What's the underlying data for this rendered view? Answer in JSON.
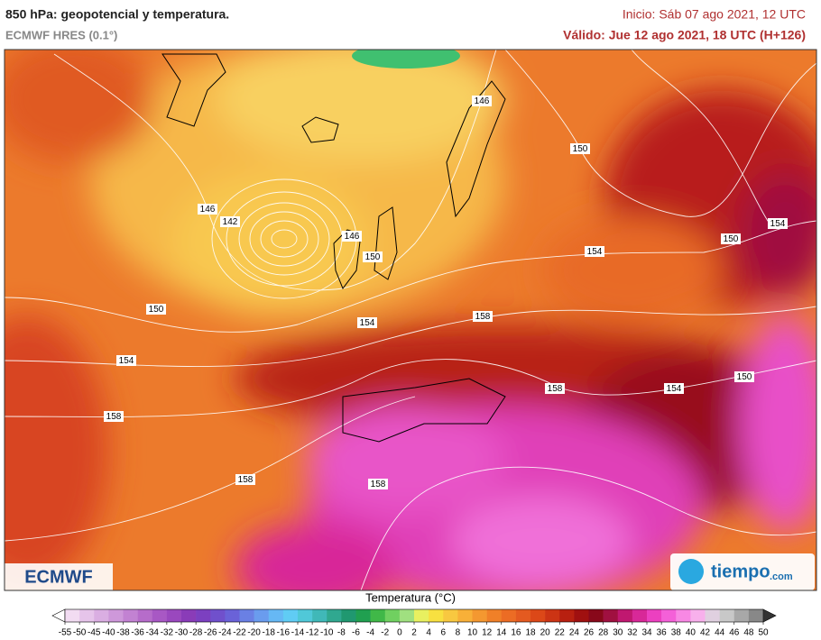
{
  "header": {
    "title": "850 hPa: geopotencial y temperatura.",
    "model": "ECMWF HRES (0.1°)",
    "init": "Inicio: Sáb 07 ago 2021, 12 UTC",
    "valid": "Válido: Jue 12 ago 2021, 18 UTC (H+126)"
  },
  "contour_labels": [
    146,
    150,
    146,
    142,
    146,
    150,
    154,
    150,
    154,
    150,
    158,
    154,
    154,
    150,
    158,
    154,
    158,
    158,
    158
  ],
  "colorbar": {
    "label": "Temperatura (°C)",
    "ticks": [
      -55,
      -50,
      -45,
      -40,
      -38,
      -36,
      -34,
      -32,
      -30,
      -28,
      -26,
      -24,
      -22,
      -20,
      -18,
      -16,
      -14,
      -12,
      -10,
      -8,
      -6,
      -4,
      -2,
      0,
      2,
      4,
      6,
      8,
      10,
      12,
      14,
      16,
      18,
      20,
      22,
      24,
      26,
      28,
      30,
      32,
      34,
      36,
      38,
      40,
      42,
      44,
      46,
      48,
      50
    ],
    "colors": [
      "#f2dcf2",
      "#e6c4ea",
      "#daaee2",
      "#ce98da",
      "#c282d2",
      "#b66cca",
      "#a858c4",
      "#9a48be",
      "#8a3cb8",
      "#7c40c0",
      "#7050cc",
      "#6a62d8",
      "#6a80e4",
      "#6a9cee",
      "#66b8f4",
      "#60ccf4",
      "#50c8d8",
      "#40b8b8",
      "#30a890",
      "#209870",
      "#20a050",
      "#40b848",
      "#70d060",
      "#a0e080",
      "#e8f060",
      "#f8e040",
      "#f8c840",
      "#f8b038",
      "#f49830",
      "#f08028",
      "#ec6c24",
      "#e45a20",
      "#dc4818",
      "#cc3414",
      "#b82010",
      "#a01010",
      "#88081a",
      "#a01040",
      "#c01870",
      "#d82898",
      "#ec40c0",
      "#f460d8",
      "#f888e4",
      "#f8b0ec",
      "#e0d0e0",
      "#c8c8c8",
      "#a8a8a8",
      "#888888"
    ]
  },
  "logos": {
    "left": "ECMWF",
    "right": "tiempo",
    "right_suffix": ".com"
  }
}
